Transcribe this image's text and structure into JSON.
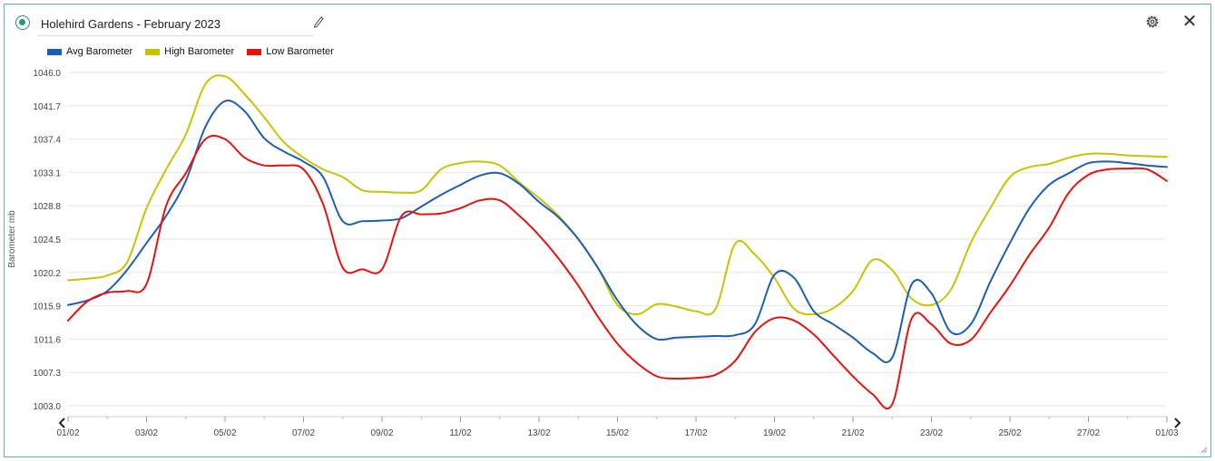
{
  "header": {
    "title": "Holehird Gardens - February 2023"
  },
  "colors": {
    "avg": "#1a5fb4",
    "high": "#c8c400",
    "low": "#e8120c",
    "accent": "#1e9e72"
  },
  "icons": {
    "status": "status-dot-icon",
    "edit": "pencil-icon",
    "settings": "gear-icon",
    "close": "close-icon",
    "prev": "chevron-left-icon",
    "next": "chevron-right-icon"
  },
  "chart_data": {
    "type": "line",
    "title": "",
    "xlabel": "",
    "ylabel": "Barometer mb",
    "ylim": [
      1003.0,
      1046.0
    ],
    "yticks": [
      "1003.0",
      "1007.3",
      "1011.6",
      "1015.9",
      "1020.2",
      "1024.5",
      "1028.8",
      "1033.1",
      "1037.4",
      "1041.7",
      "1046.0"
    ],
    "xticks": [
      "01/02",
      "03/02",
      "05/02",
      "07/02",
      "09/02",
      "11/02",
      "13/02",
      "15/02",
      "17/02",
      "19/02",
      "21/02",
      "23/02",
      "25/02",
      "27/02",
      "01/03"
    ],
    "grid": true,
    "legend_position": "top-left",
    "x": [
      0,
      0.5,
      1,
      1.5,
      2,
      2.5,
      3,
      3.5,
      4,
      4.5,
      5,
      5.5,
      6,
      6.5,
      7,
      7.5,
      8,
      8.5,
      9,
      9.5,
      10,
      10.5,
      11,
      11.5,
      12,
      12.5,
      13,
      13.5,
      14,
      14.5,
      15,
      15.5,
      16,
      16.5,
      17,
      17.5,
      18,
      18.5,
      19,
      19.5,
      20,
      20.5,
      21,
      21.5,
      22,
      22.5,
      23,
      23.5,
      24,
      24.5,
      25,
      25.5,
      26,
      26.5,
      27,
      27.5,
      28
    ],
    "series": [
      {
        "name": "Avg Barometer",
        "values": [
          1016.0,
          1016.6,
          1017.8,
          1020.5,
          1024.0,
          1027.5,
          1032.0,
          1039.0,
          1042.3,
          1041.0,
          1037.5,
          1035.8,
          1034.5,
          1032.5,
          1026.8,
          1026.8,
          1026.9,
          1027.2,
          1028.7,
          1030.2,
          1031.5,
          1032.7,
          1033.0,
          1031.6,
          1029.3,
          1027.3,
          1024.5,
          1020.8,
          1016.6,
          1013.4,
          1011.6,
          1011.8,
          1011.9,
          1012.0,
          1012.1,
          1013.5,
          1019.9,
          1019.5,
          1015.2,
          1013.5,
          1011.8,
          1009.8,
          1009.2,
          1018.7,
          1017.5,
          1012.5,
          1013.5,
          1019.0,
          1024.0,
          1028.5,
          1031.5,
          1033.0,
          1034.3,
          1034.5,
          1034.3,
          1034.0,
          1033.8
        ]
      },
      {
        "name": "High Barometer",
        "values": [
          1019.2,
          1019.4,
          1019.8,
          1021.5,
          1028.5,
          1033.5,
          1038.0,
          1044.5,
          1045.5,
          1043.2,
          1040.2,
          1037.0,
          1035.0,
          1033.5,
          1032.5,
          1030.8,
          1030.6,
          1030.5,
          1030.8,
          1033.5,
          1034.3,
          1034.5,
          1034.0,
          1031.8,
          1029.8,
          1027.5,
          1024.5,
          1020.8,
          1016.0,
          1014.8,
          1016.1,
          1015.8,
          1015.2,
          1015.5,
          1023.9,
          1022.5,
          1019.5,
          1015.5,
          1014.8,
          1015.6,
          1017.8,
          1021.8,
          1020.5,
          1016.8,
          1016.0,
          1018.0,
          1024.0,
          1028.5,
          1032.5,
          1033.8,
          1034.2,
          1035.0,
          1035.5,
          1035.5,
          1035.3,
          1035.2,
          1035.1
        ]
      },
      {
        "name": "Low Barometer",
        "values": [
          1014.0,
          1016.5,
          1017.6,
          1017.8,
          1018.7,
          1028.8,
          1033.0,
          1037.4,
          1037.4,
          1035.0,
          1034.0,
          1034.0,
          1033.5,
          1029.0,
          1020.8,
          1020.6,
          1020.6,
          1027.5,
          1027.7,
          1027.8,
          1028.5,
          1029.5,
          1029.5,
          1027.5,
          1025.0,
          1022.0,
          1018.5,
          1014.5,
          1011.0,
          1008.5,
          1006.8,
          1006.5,
          1006.6,
          1007.0,
          1008.8,
          1012.5,
          1014.3,
          1014.0,
          1012.2,
          1009.5,
          1006.8,
          1004.5,
          1003.2,
          1014.3,
          1013.5,
          1011.0,
          1011.5,
          1015.0,
          1018.5,
          1022.5,
          1026.0,
          1030.5,
          1032.8,
          1033.5,
          1033.6,
          1033.5,
          1032.0
        ]
      }
    ]
  }
}
